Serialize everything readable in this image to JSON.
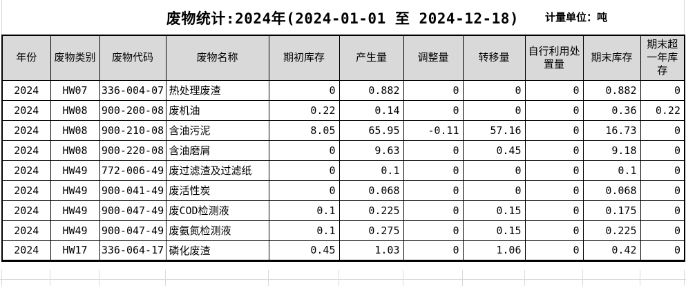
{
  "title": "废物统计:2024年(2024-01-01 至 2024-12-18)",
  "unit_label": "计量单位：吨",
  "table": {
    "columns": [
      {
        "label": "年份"
      },
      {
        "label": "废物类别"
      },
      {
        "label": "废物代码"
      },
      {
        "label": "废物名称"
      },
      {
        "label": "期初库存"
      },
      {
        "label": "产生量"
      },
      {
        "label": "调整量"
      },
      {
        "label": "转移量"
      },
      {
        "label": "自行利用处\n置量"
      },
      {
        "label": "期末库存"
      },
      {
        "label": "期末超\n一年库\n存"
      }
    ],
    "rows": [
      [
        "2024",
        "HW07",
        "336-004-07",
        "热处理废渣",
        "0",
        "0.882",
        "0",
        "0",
        "0",
        "0.882",
        "0"
      ],
      [
        "2024",
        "HW08",
        "900-200-08",
        "废机油",
        "0.22",
        "0.14",
        "0",
        "0",
        "0",
        "0.36",
        "0.22"
      ],
      [
        "2024",
        "HW08",
        "900-210-08",
        "含油污泥",
        "8.05",
        "65.95",
        "-0.11",
        "57.16",
        "0",
        "16.73",
        "0"
      ],
      [
        "2024",
        "HW08",
        "900-220-08",
        "含油磨屑",
        "0",
        "9.63",
        "0",
        "0.45",
        "0",
        "9.18",
        "0"
      ],
      [
        "2024",
        "HW49",
        "772-006-49",
        "废过滤渣及过滤纸",
        "0",
        "0.1",
        "0",
        "0",
        "0",
        "0.1",
        "0"
      ],
      [
        "2024",
        "HW49",
        "900-041-49",
        "废活性炭",
        "0",
        "0.068",
        "0",
        "0",
        "0",
        "0.068",
        "0"
      ],
      [
        "2024",
        "HW49",
        "900-047-49",
        "废COD检测液",
        "0.1",
        "0.225",
        "0",
        "0.15",
        "0",
        "0.175",
        "0"
      ],
      [
        "2024",
        "HW49",
        "900-047-49",
        "废氨氮检测液",
        "0.1",
        "0.275",
        "0",
        "0.15",
        "0",
        "0.225",
        "0"
      ],
      [
        "2024",
        "HW17",
        "336-064-17",
        "磷化废渣",
        "0.45",
        "1.03",
        "0",
        "1.06",
        "0",
        "0.42",
        "0"
      ]
    ]
  },
  "colors": {
    "header_bg": "#d9d9d9",
    "border": "#000000",
    "gridline": "#d9d9d9",
    "background": "#ffffff"
  }
}
